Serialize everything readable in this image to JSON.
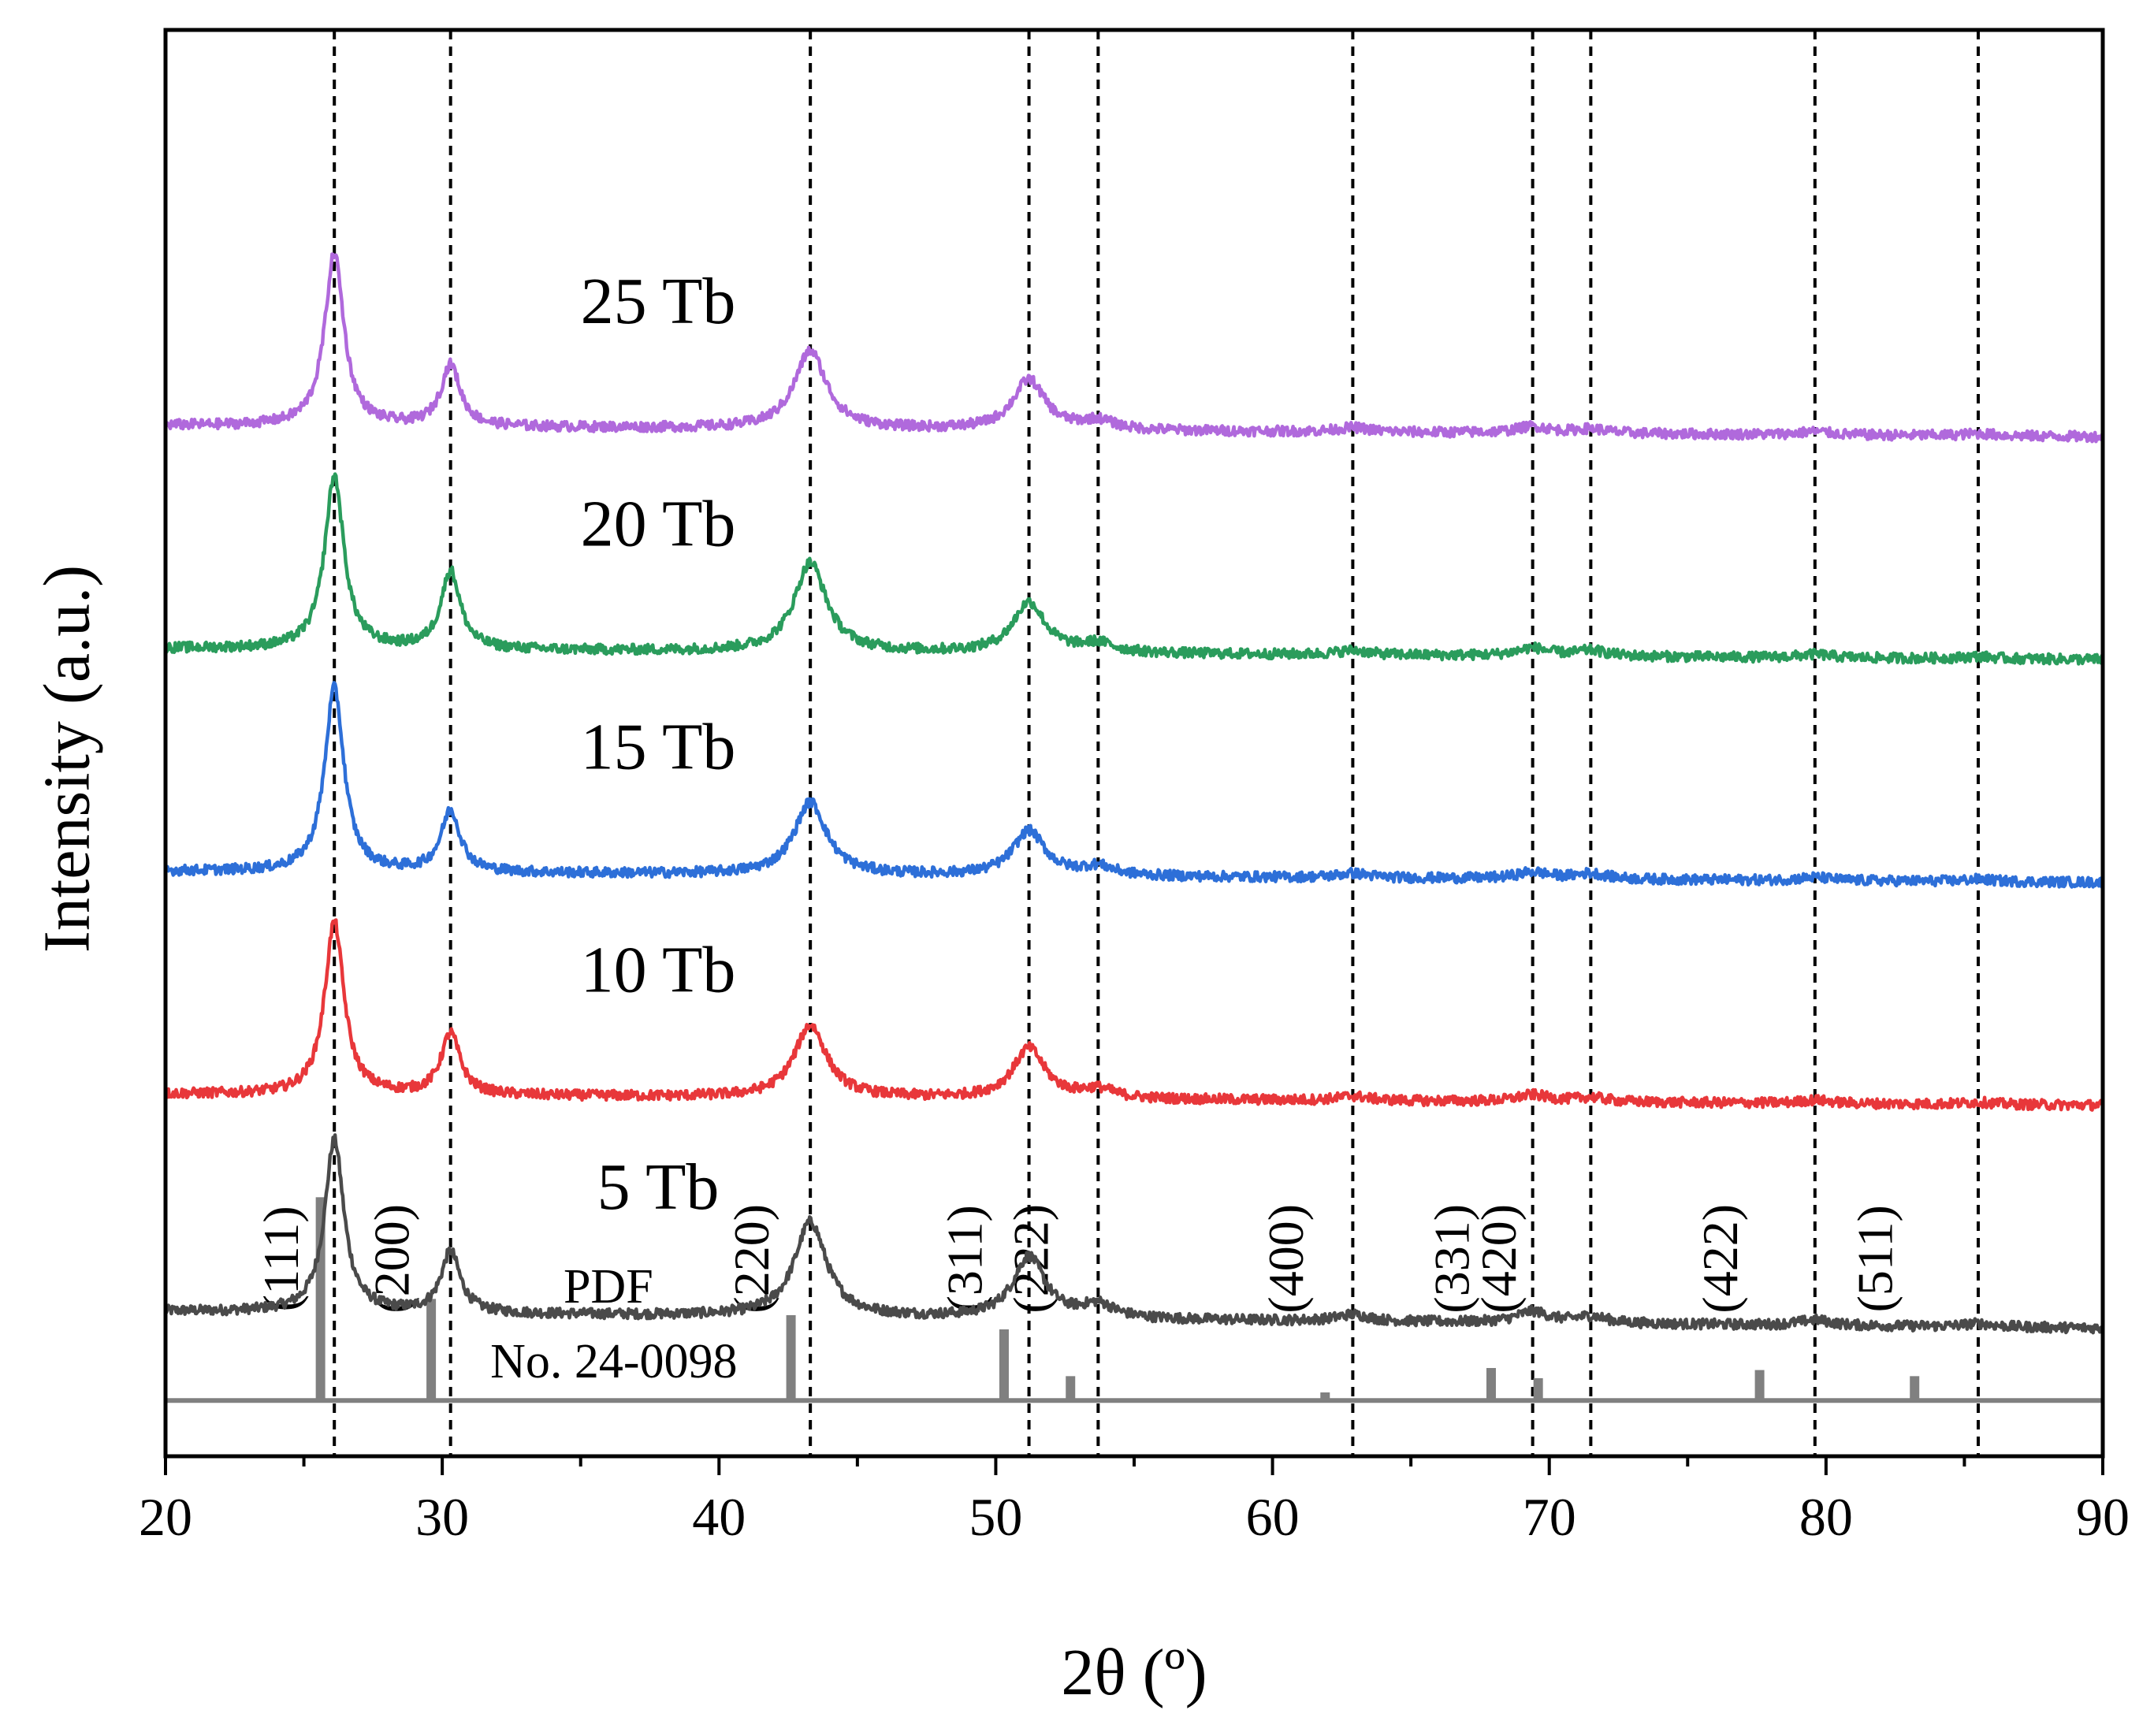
{
  "chart_data": {
    "type": "line",
    "title": "",
    "xlabel": "2θ (º)",
    "ylabel": "Intensity (a.u.)",
    "xlim": [
      20,
      90
    ],
    "ylim": [
      -1.2,
      11.6
    ],
    "xticks": [
      "20",
      "30",
      "40",
      "50",
      "60",
      "70",
      "80",
      "90"
    ],
    "x_tick_values": [
      20,
      30,
      40,
      50,
      60,
      70,
      80,
      90
    ],
    "minor_tick_step": 5,
    "y_axis_ticks": "none",
    "grid": false,
    "legend": "none",
    "peak_positions": [
      26.1,
      30.3,
      43.3,
      51.2,
      53.7,
      62.9,
      69.4,
      71.5,
      79.6,
      85.5
    ],
    "series": [
      {
        "name": "5 Tb",
        "label": "5 Tb",
        "color": "#4a4a4a",
        "baseline_start": 0.1,
        "baseline_end": -0.05,
        "peaks": [
          [
            26.1,
            1.55
          ],
          [
            30.3,
            0.55
          ],
          [
            43.3,
            0.85
          ],
          [
            51.2,
            0.55
          ],
          [
            53.7,
            0.12
          ],
          [
            62.9,
            0.06
          ],
          [
            69.4,
            0.1
          ],
          [
            71.5,
            0.06
          ],
          [
            79.6,
            0.05
          ],
          [
            85.5,
            0.03
          ]
        ]
      },
      {
        "name": "10 Tb",
        "label": "10 Tb",
        "color": "#e8373a",
        "baseline_start": 2.05,
        "baseline_end": 1.95,
        "peaks": [
          [
            26.1,
            1.55
          ],
          [
            30.3,
            0.55
          ],
          [
            43.3,
            0.65
          ],
          [
            51.2,
            0.45
          ],
          [
            53.7,
            0.08
          ],
          [
            62.9,
            0.04
          ],
          [
            69.4,
            0.06
          ],
          [
            71.5,
            0.04
          ],
          [
            79.6,
            0.03
          ],
          [
            85.5,
            0.02
          ]
        ]
      },
      {
        "name": "15 Tb",
        "label": "15 Tb",
        "color": "#2d6fd8",
        "baseline_start": 4.05,
        "baseline_end": 3.95,
        "peaks": [
          [
            26.1,
            1.65
          ],
          [
            30.3,
            0.55
          ],
          [
            43.3,
            0.65
          ],
          [
            51.2,
            0.4
          ],
          [
            53.7,
            0.08
          ],
          [
            62.9,
            0.04
          ],
          [
            69.4,
            0.06
          ],
          [
            71.5,
            0.05
          ],
          [
            79.6,
            0.03
          ],
          [
            85.5,
            0.02
          ]
        ]
      },
      {
        "name": "20 Tb",
        "label": "20 Tb",
        "color": "#2a9c5c",
        "baseline_start": 6.05,
        "baseline_end": 5.95,
        "peaks": [
          [
            26.1,
            1.55
          ],
          [
            30.3,
            0.7
          ],
          [
            43.3,
            0.8
          ],
          [
            51.2,
            0.45
          ],
          [
            53.7,
            0.08
          ],
          [
            62.9,
            0.04
          ],
          [
            69.4,
            0.07
          ],
          [
            71.5,
            0.05
          ],
          [
            79.6,
            0.03
          ],
          [
            85.5,
            0.02
          ]
        ]
      },
      {
        "name": "25 Tb",
        "label": "25 Tb",
        "color": "#b069dc",
        "baseline_start": 8.05,
        "baseline_end": 7.95,
        "peaks": [
          [
            26.1,
            1.55
          ],
          [
            30.3,
            0.55
          ],
          [
            43.3,
            0.7
          ],
          [
            51.2,
            0.45
          ],
          [
            53.7,
            0.08
          ],
          [
            62.9,
            0.04
          ],
          [
            69.4,
            0.06
          ],
          [
            71.5,
            0.04
          ],
          [
            79.6,
            0.03
          ],
          [
            85.5,
            0.02
          ]
        ]
      }
    ],
    "reference": {
      "label_line1": "PDF",
      "label_line2": "No. 24-0098",
      "color": "#808080",
      "baseline": -0.7,
      "sticks": [
        {
          "x": 25.6,
          "intensity": 100,
          "hkl": "(111)"
        },
        {
          "x": 29.6,
          "intensity": 50,
          "hkl": "(200)"
        },
        {
          "x": 42.6,
          "intensity": 42,
          "hkl": "(220)"
        },
        {
          "x": 50.3,
          "intensity": 35,
          "hkl": "(311)"
        },
        {
          "x": 52.7,
          "intensity": 12,
          "hkl": "(222)"
        },
        {
          "x": 61.9,
          "intensity": 4,
          "hkl": "(400)"
        },
        {
          "x": 67.9,
          "intensity": 16,
          "hkl": "(331)"
        },
        {
          "x": 69.6,
          "intensity": 11,
          "hkl": "(420)"
        },
        {
          "x": 77.6,
          "intensity": 15,
          "hkl": "(422)"
        },
        {
          "x": 83.2,
          "intensity": 12,
          "hkl": "(511)"
        }
      ]
    }
  }
}
